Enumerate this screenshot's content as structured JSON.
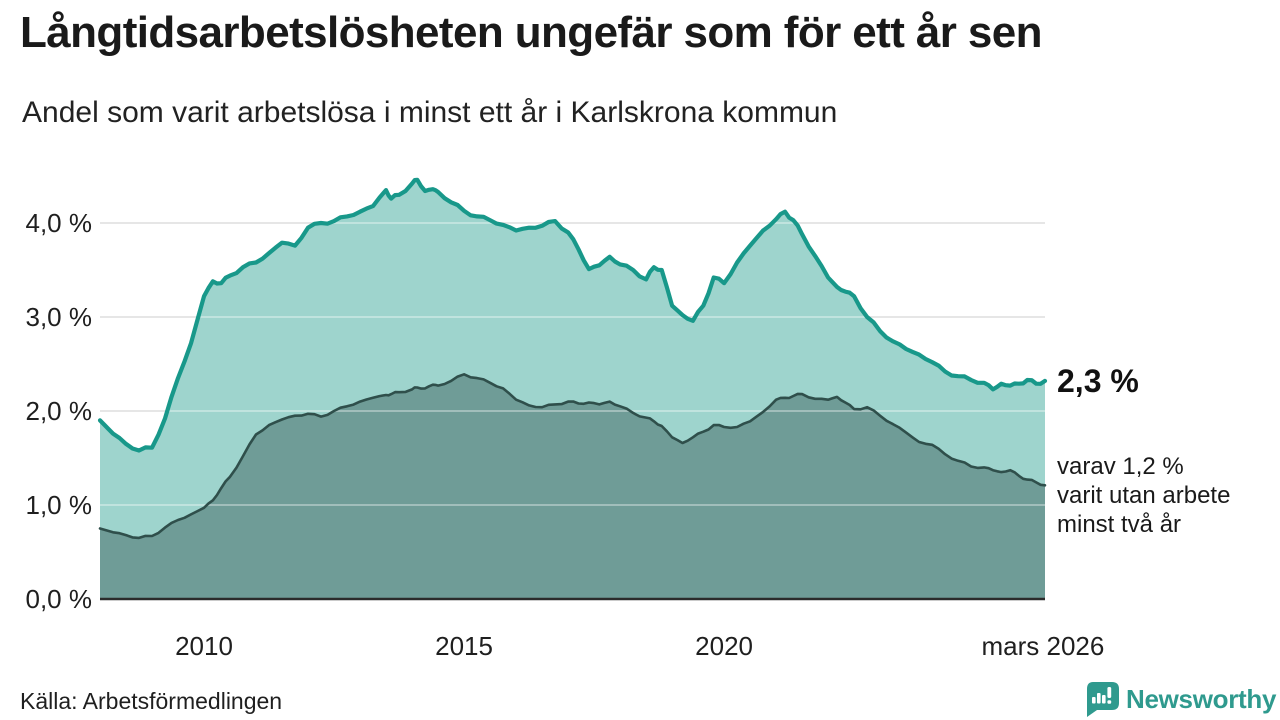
{
  "header": {
    "title": "Långtidsarbetslösheten ungefär som för ett år sen",
    "subtitle": "Andel som varit arbetslösa i minst ett år i Karlskrona kommun"
  },
  "footer": {
    "source": "Källa: Arbetsförmedlingen",
    "brand": "Newsworthy"
  },
  "colors": {
    "accent_teal_line": "#18988a",
    "light_area_fill": "#9ed4cd",
    "dark_area_fill": "#6f9c97",
    "dark_area_line": "#2f4f4b",
    "gridline": "#d9d9d9",
    "axis_line": "#2b2b2b",
    "text": "#1a1a1a",
    "brand_teal": "#2f9a8e"
  },
  "chart_data": {
    "type": "area",
    "title": "Långtidsarbetslösheten ungefär som för ett år sen",
    "subtitle": "Andel som varit arbetslösa i minst ett år i Karlskrona kommun",
    "xlabel": "",
    "ylabel": "",
    "grid": true,
    "legend_position": "none",
    "x_range": [
      2008.0,
      2026.17
    ],
    "ylim": [
      0,
      4.6
    ],
    "y_ticks": [
      {
        "value": 0,
        "label": "0,0 %"
      },
      {
        "value": 1,
        "label": "1,0 %"
      },
      {
        "value": 2,
        "label": "2,0 %"
      },
      {
        "value": 3,
        "label": "3,0 %"
      },
      {
        "value": 4,
        "label": "4,0 %"
      }
    ],
    "x_ticks": [
      {
        "value": 2010,
        "label": "2010"
      },
      {
        "value": 2015,
        "label": "2015"
      },
      {
        "value": 2020,
        "label": "2020"
      },
      {
        "value": 2026.13,
        "label": "mars 2026"
      }
    ],
    "x": [
      2008.0,
      2008.25,
      2008.5,
      2008.75,
      2009.0,
      2009.25,
      2009.5,
      2009.75,
      2010.0,
      2010.17,
      2010.33,
      2010.5,
      2010.75,
      2011.0,
      2011.25,
      2011.5,
      2011.75,
      2012.0,
      2012.25,
      2012.5,
      2012.75,
      2013.0,
      2013.25,
      2013.5,
      2013.6,
      2013.75,
      2014.0,
      2014.1,
      2014.25,
      2014.4,
      2014.5,
      2014.75,
      2015.0,
      2015.25,
      2015.5,
      2015.75,
      2016.0,
      2016.25,
      2016.5,
      2016.75,
      2017.0,
      2017.2,
      2017.4,
      2017.6,
      2017.8,
      2018.0,
      2018.25,
      2018.5,
      2018.65,
      2018.8,
      2019.0,
      2019.2,
      2019.4,
      2019.6,
      2019.8,
      2020.0,
      2020.25,
      2020.5,
      2020.75,
      2021.0,
      2021.17,
      2021.33,
      2021.5,
      2021.75,
      2022.0,
      2022.17,
      2022.33,
      2022.5,
      2022.75,
      2023.0,
      2023.25,
      2023.5,
      2023.75,
      2024.0,
      2024.25,
      2024.5,
      2024.75,
      2025.0,
      2025.17,
      2025.33,
      2025.5,
      2025.67,
      2025.83,
      2026.0,
      2026.17
    ],
    "series": [
      {
        "name": "Andel som varit arbetslösa i minst ett år",
        "end_label": "2,3 %",
        "end_value_pct": 2.3,
        "values": [
          1.9,
          1.76,
          1.65,
          1.58,
          1.61,
          1.92,
          2.35,
          2.72,
          3.22,
          3.38,
          3.36,
          3.44,
          3.53,
          3.58,
          3.68,
          3.79,
          3.76,
          3.95,
          4.0,
          4.02,
          4.07,
          4.12,
          4.18,
          4.35,
          4.26,
          4.3,
          4.42,
          4.46,
          4.34,
          4.36,
          4.33,
          4.22,
          4.13,
          4.07,
          4.03,
          3.98,
          3.92,
          3.95,
          3.97,
          4.02,
          3.9,
          3.72,
          3.51,
          3.55,
          3.64,
          3.56,
          3.5,
          3.4,
          3.53,
          3.5,
          3.12,
          3.02,
          2.96,
          3.12,
          3.42,
          3.36,
          3.58,
          3.76,
          3.92,
          4.04,
          4.12,
          4.03,
          3.88,
          3.65,
          3.42,
          3.32,
          3.27,
          3.22,
          3.0,
          2.85,
          2.74,
          2.66,
          2.6,
          2.52,
          2.42,
          2.37,
          2.33,
          2.3,
          2.23,
          2.29,
          2.27,
          2.29,
          2.33,
          2.29,
          2.32
        ]
      },
      {
        "name": "varav utan arbete minst två år",
        "end_label": "varav 1,2 %\nvarit utan arbete\nminst två år",
        "end_value_pct": 1.2,
        "values": [
          0.75,
          0.71,
          0.68,
          0.65,
          0.67,
          0.76,
          0.84,
          0.9,
          0.97,
          1.05,
          1.18,
          1.3,
          1.52,
          1.75,
          1.85,
          1.91,
          1.95,
          1.97,
          1.94,
          2.0,
          2.05,
          2.1,
          2.14,
          2.17,
          2.18,
          2.2,
          2.23,
          2.25,
          2.24,
          2.28,
          2.27,
          2.32,
          2.39,
          2.35,
          2.3,
          2.24,
          2.12,
          2.06,
          2.04,
          2.07,
          2.1,
          2.08,
          2.09,
          2.07,
          2.1,
          2.05,
          1.98,
          1.93,
          1.89,
          1.84,
          1.72,
          1.66,
          1.72,
          1.78,
          1.85,
          1.83,
          1.83,
          1.89,
          1.99,
          2.12,
          2.14,
          2.16,
          2.18,
          2.13,
          2.12,
          2.15,
          2.09,
          2.02,
          2.04,
          1.95,
          1.86,
          1.77,
          1.67,
          1.64,
          1.54,
          1.47,
          1.41,
          1.4,
          1.37,
          1.35,
          1.37,
          1.31,
          1.27,
          1.24,
          1.21
        ]
      }
    ]
  }
}
